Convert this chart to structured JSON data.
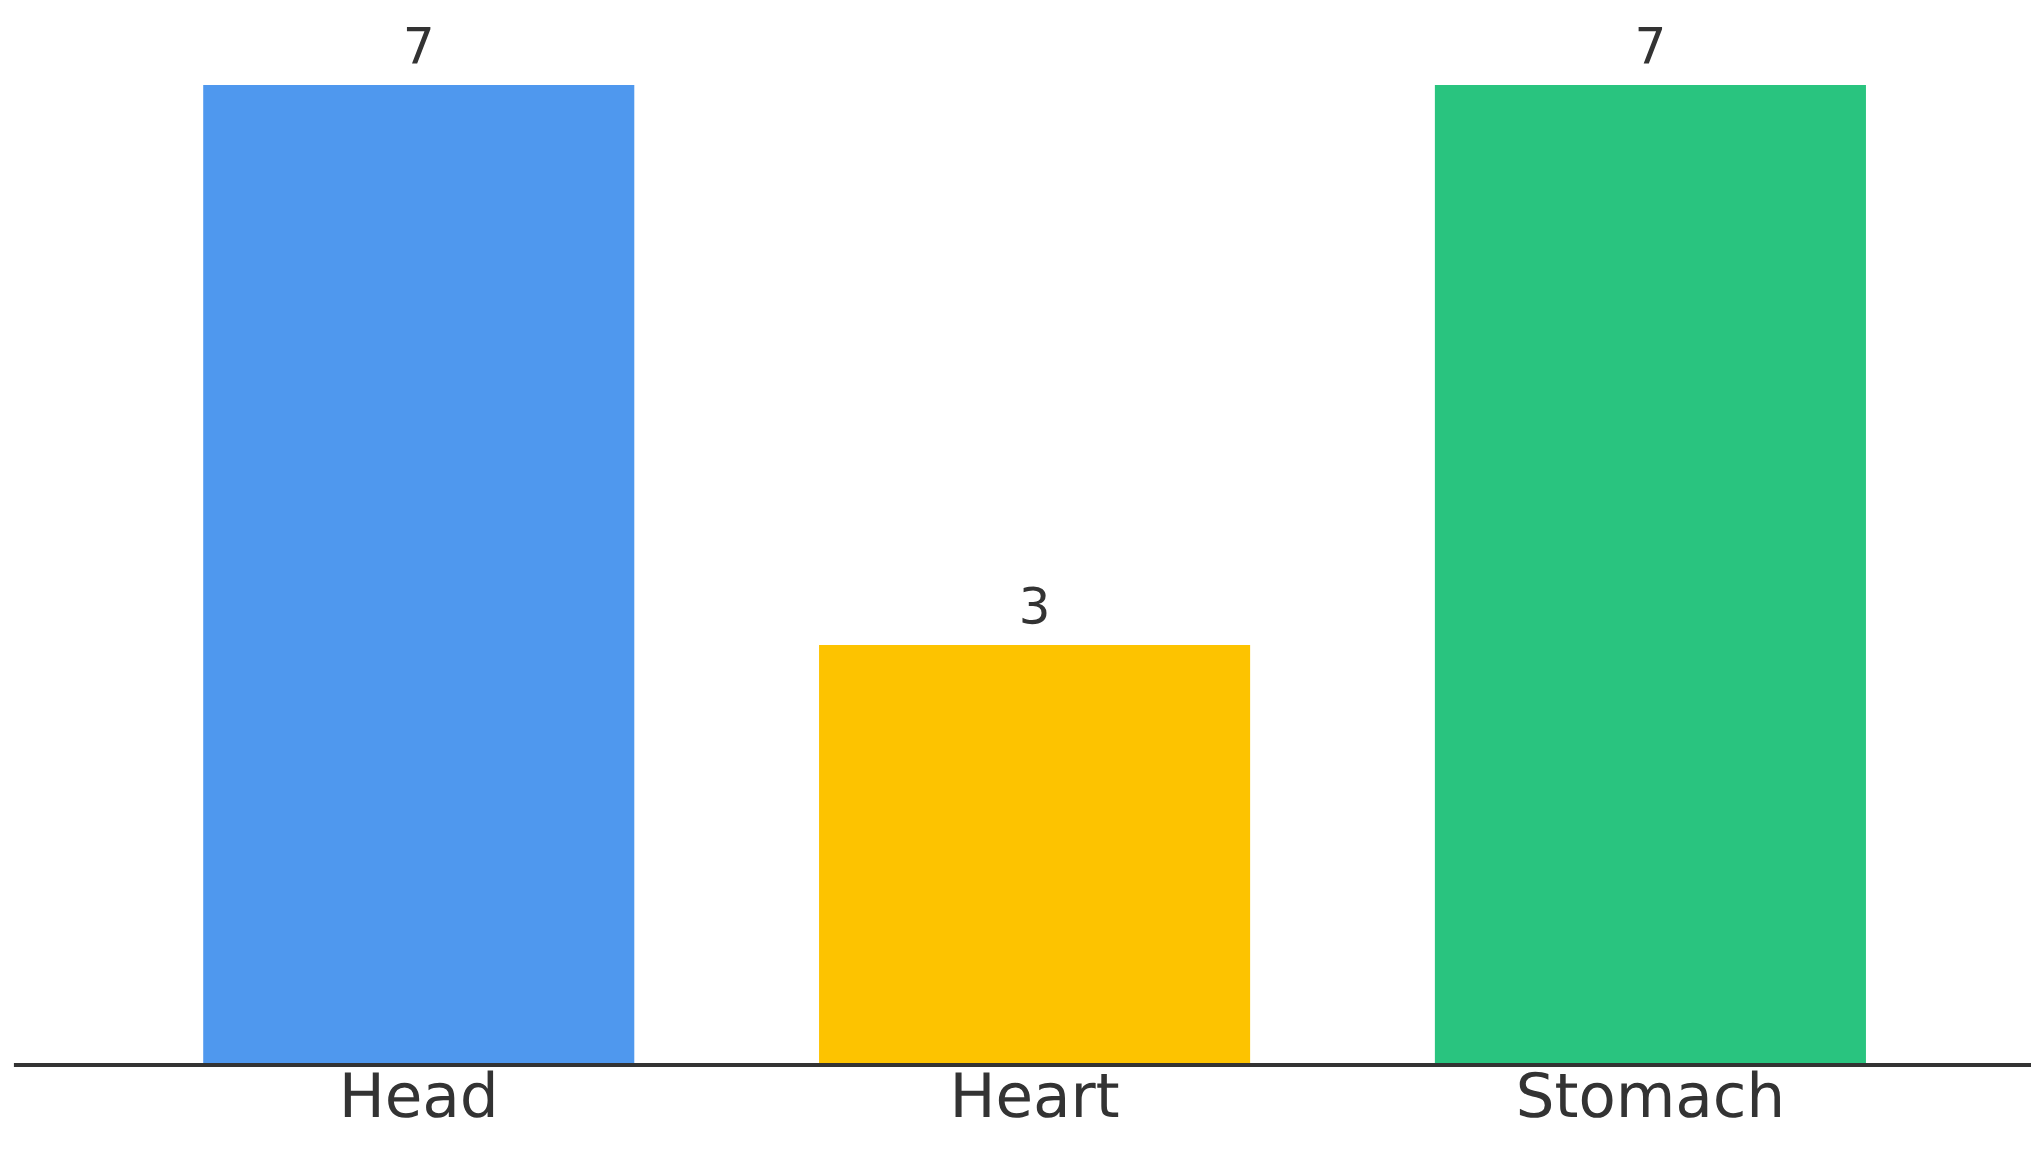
{
  "chart_data": {
    "type": "bar",
    "categories": [
      "Head",
      "Heart",
      "Stomach"
    ],
    "values": [
      7,
      3,
      7
    ],
    "colors": [
      "#4f98ee",
      "#fdc300",
      "#29c47f"
    ],
    "data_labels": true,
    "grid": false,
    "legend": false
  }
}
